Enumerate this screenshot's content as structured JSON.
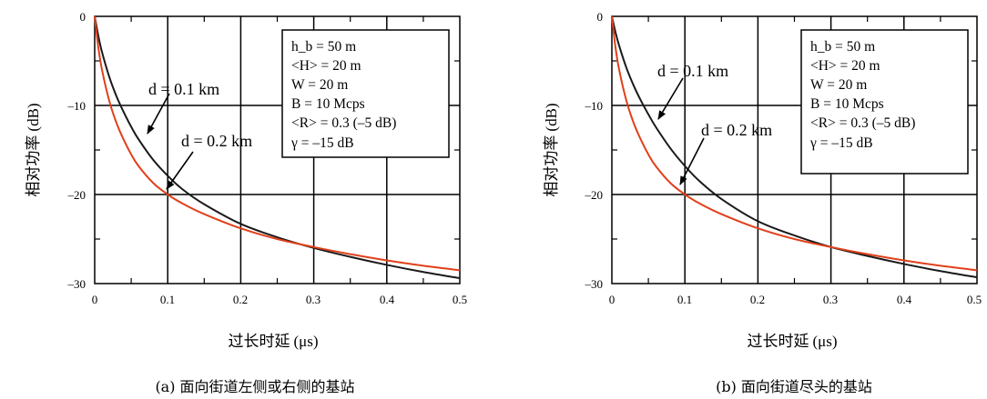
{
  "colors": {
    "black_curve": "#1a1a1a",
    "red_curve": "#e0401a",
    "grid": "#000000"
  },
  "chart_data": [
    {
      "type": "line",
      "caption": "(a) 面向街道左侧或右侧的基站",
      "xlabel_cn": "过长时延",
      "xlabel_unit": "(μs)",
      "ylabel_cn": "相对功率",
      "ylabel_unit": "(dB)",
      "xlim": [
        0,
        0.5
      ],
      "ylim": [
        -30,
        0
      ],
      "xticks": [
        "0",
        "0.1",
        "0.2",
        "0.3",
        "0.4",
        "0.5"
      ],
      "yticks": [
        "0",
        "–10",
        "–20",
        "–30"
      ],
      "grid": true,
      "series": [
        {
          "name": "d = 0.1 km",
          "color": "#1a1a1a",
          "x": [
            0,
            0.005,
            0.01,
            0.02,
            0.03,
            0.04,
            0.05,
            0.06,
            0.08,
            0.1,
            0.12,
            0.15,
            0.2,
            0.25,
            0.3,
            0.35,
            0.4,
            0.45,
            0.5
          ],
          "y": [
            0,
            -2.2,
            -4.0,
            -6.8,
            -9.0,
            -10.8,
            -12.4,
            -13.8,
            -16.1,
            -17.9,
            -19.4,
            -21.1,
            -23.3,
            -24.8,
            -26.0,
            -27.0,
            -27.9,
            -28.7,
            -29.4
          ]
        },
        {
          "name": "d = 0.2 km",
          "color": "#e0401a",
          "x": [
            0,
            0.005,
            0.01,
            0.02,
            0.03,
            0.04,
            0.05,
            0.06,
            0.08,
            0.1,
            0.12,
            0.15,
            0.2,
            0.25,
            0.3,
            0.35,
            0.4,
            0.45,
            0.5
          ],
          "y": [
            0,
            -3.5,
            -6.0,
            -9.5,
            -12.0,
            -13.9,
            -15.5,
            -16.8,
            -18.7,
            -20.0,
            -21.0,
            -22.2,
            -23.8,
            -25.0,
            -25.9,
            -26.7,
            -27.4,
            -28.0,
            -28.5
          ]
        }
      ],
      "annotations": [
        {
          "text": "d = 0.1 km",
          "target": [
            0.07,
            -13.5
          ]
        },
        {
          "text": "d = 0.2 km",
          "target": [
            0.1,
            -19.5
          ]
        }
      ],
      "params": [
        "h_b = 50 m",
        "<H> = 20 m",
        "W = 20 m",
        "B = 10 Mcps",
        "<R> = 0.3 (–5 dB)",
        "γ = –15 dB"
      ]
    },
    {
      "type": "line",
      "caption": "(b) 面向街道尽头的基站",
      "xlabel_cn": "过长时延",
      "xlabel_unit": "(μs)",
      "ylabel_cn": "相对功率",
      "ylabel_unit": "(dB)",
      "xlim": [
        0,
        0.5
      ],
      "ylim": [
        -30,
        0
      ],
      "xticks": [
        "0",
        "0.1",
        "0.2",
        "0.3",
        "0.4",
        "0.5"
      ],
      "yticks": [
        "0",
        "–10",
        "–20",
        "–30"
      ],
      "grid": true,
      "series": [
        {
          "name": "d = 0.1 km",
          "color": "#1a1a1a",
          "x": [
            0,
            0.005,
            0.01,
            0.02,
            0.03,
            0.04,
            0.05,
            0.06,
            0.08,
            0.1,
            0.12,
            0.15,
            0.2,
            0.25,
            0.3,
            0.35,
            0.4,
            0.45,
            0.5
          ],
          "y": [
            0,
            -1.8,
            -3.3,
            -5.8,
            -7.8,
            -9.5,
            -11.0,
            -12.4,
            -14.8,
            -16.8,
            -18.5,
            -20.5,
            -23.0,
            -24.6,
            -25.9,
            -26.9,
            -27.8,
            -28.6,
            -29.3
          ]
        },
        {
          "name": "d = 0.2 km",
          "color": "#e0401a",
          "x": [
            0,
            0.005,
            0.01,
            0.02,
            0.03,
            0.04,
            0.05,
            0.06,
            0.08,
            0.1,
            0.12,
            0.15,
            0.2,
            0.25,
            0.3,
            0.35,
            0.4,
            0.45,
            0.5
          ],
          "y": [
            0,
            -3.5,
            -6.0,
            -9.5,
            -12.0,
            -13.9,
            -15.5,
            -16.8,
            -18.7,
            -20.0,
            -21.0,
            -22.2,
            -23.8,
            -25.0,
            -25.9,
            -26.7,
            -27.4,
            -28.0,
            -28.5
          ]
        }
      ],
      "annotations": [
        {
          "text": "d = 0.1 km",
          "target": [
            0.065,
            -11.5
          ]
        },
        {
          "text": "d = 0.2 km",
          "target": [
            0.095,
            -19.5
          ]
        }
      ],
      "params": [
        "h_b = 50 m",
        "<H> = 20 m",
        "W = 20 m",
        "B = 10 Mcps",
        "<R> = 0.3 (–5 dB)",
        "γ = –15 dB"
      ]
    }
  ]
}
